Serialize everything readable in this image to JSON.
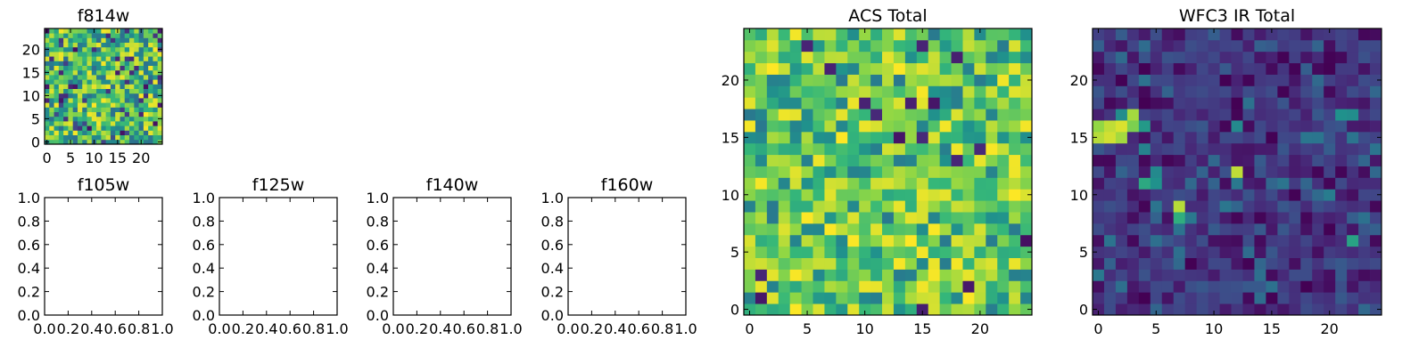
{
  "chart_data": [
    {
      "type": "heatmap",
      "title": "f814w",
      "xlabel": "",
      "ylabel": "",
      "xlim": [
        -0.5,
        24.5
      ],
      "ylim": [
        -0.5,
        24.5
      ],
      "grid_size": [
        25,
        25
      ],
      "xticks": [
        0,
        5,
        10,
        15,
        20
      ],
      "yticks": [
        0,
        5,
        10,
        15,
        20
      ],
      "colormap": "viridis",
      "seed": 17,
      "mode": "noise"
    },
    {
      "type": "empty",
      "title": "f105w",
      "xlim": [
        0.0,
        1.0
      ],
      "ylim": [
        0.0,
        1.0
      ],
      "xticks": [
        "0.0",
        "0.2",
        "0.4",
        "0.6",
        "0.8",
        "1.0"
      ],
      "yticks": [
        "0.0",
        "0.2",
        "0.4",
        "0.6",
        "0.8",
        "1.0"
      ]
    },
    {
      "type": "empty",
      "title": "f125w",
      "xlim": [
        0.0,
        1.0
      ],
      "ylim": [
        0.0,
        1.0
      ],
      "xticks": [
        "0.0",
        "0.2",
        "0.4",
        "0.6",
        "0.8",
        "1.0"
      ],
      "yticks": [
        "0.0",
        "0.2",
        "0.4",
        "0.6",
        "0.8",
        "1.0"
      ]
    },
    {
      "type": "empty",
      "title": "f140w",
      "xlim": [
        0.0,
        1.0
      ],
      "ylim": [
        0.0,
        1.0
      ],
      "xticks": [
        "0.0",
        "0.2",
        "0.4",
        "0.6",
        "0.8",
        "1.0"
      ],
      "yticks": [
        "0.0",
        "0.2",
        "0.4",
        "0.6",
        "0.8",
        "1.0"
      ]
    },
    {
      "type": "empty",
      "title": "f160w",
      "xlim": [
        0.0,
        1.0
      ],
      "ylim": [
        0.0,
        1.0
      ],
      "xticks": [
        "0.0",
        "0.2",
        "0.4",
        "0.6",
        "0.8",
        "1.0"
      ],
      "yticks": [
        "0.0",
        "0.2",
        "0.4",
        "0.6",
        "0.8",
        "1.0"
      ]
    },
    {
      "type": "heatmap",
      "title": "ACS Total",
      "xlim": [
        -0.5,
        24.5
      ],
      "ylim": [
        -0.5,
        24.5
      ],
      "grid_size": [
        25,
        25
      ],
      "xticks": [
        0,
        5,
        10,
        15,
        20
      ],
      "yticks": [
        0,
        5,
        10,
        15,
        20
      ],
      "colormap": "viridis",
      "seed": 42,
      "mode": "bright"
    },
    {
      "type": "heatmap",
      "title": "WFC3 IR Total",
      "xlim": [
        -0.5,
        24.5
      ],
      "ylim": [
        -0.5,
        24.5
      ],
      "grid_size": [
        25,
        25
      ],
      "xticks": [
        0,
        5,
        10,
        15,
        20
      ],
      "yticks": [
        0,
        5,
        10,
        15,
        20
      ],
      "colormap": "viridis",
      "seed": 7,
      "mode": "dark",
      "bright_pixels": [
        {
          "x": 0,
          "y": 15,
          "v": 0.92
        },
        {
          "x": 1,
          "y": 15,
          "v": 0.95
        },
        {
          "x": 2,
          "y": 15,
          "v": 0.9
        },
        {
          "x": 0,
          "y": 16,
          "v": 0.88
        },
        {
          "x": 1,
          "y": 16,
          "v": 0.93
        },
        {
          "x": 2,
          "y": 16,
          "v": 0.96
        },
        {
          "x": 3,
          "y": 16,
          "v": 0.85
        },
        {
          "x": 3,
          "y": 17,
          "v": 0.9
        },
        {
          "x": 2,
          "y": 17,
          "v": 0.6
        },
        {
          "x": 4,
          "y": 16,
          "v": 0.65
        },
        {
          "x": 4,
          "y": 14,
          "v": 0.55
        },
        {
          "x": 5,
          "y": 12,
          "v": 0.58
        },
        {
          "x": 4,
          "y": 11,
          "v": 0.7
        },
        {
          "x": 5,
          "y": 11,
          "v": 0.62
        },
        {
          "x": 7,
          "y": 9,
          "v": 0.92
        },
        {
          "x": 7,
          "y": 8,
          "v": 0.72
        },
        {
          "x": 8,
          "y": 8,
          "v": 0.5
        },
        {
          "x": 12,
          "y": 12,
          "v": 0.93
        },
        {
          "x": 12,
          "y": 11,
          "v": 0.5
        },
        {
          "x": 12,
          "y": 16,
          "v": 0.58
        },
        {
          "x": 21,
          "y": 17,
          "v": 0.62
        },
        {
          "x": 22,
          "y": 17,
          "v": 0.6
        },
        {
          "x": 20,
          "y": 10,
          "v": 0.52
        },
        {
          "x": 22,
          "y": 6,
          "v": 0.68
        },
        {
          "x": 0,
          "y": 3,
          "v": 0.5
        }
      ]
    }
  ]
}
